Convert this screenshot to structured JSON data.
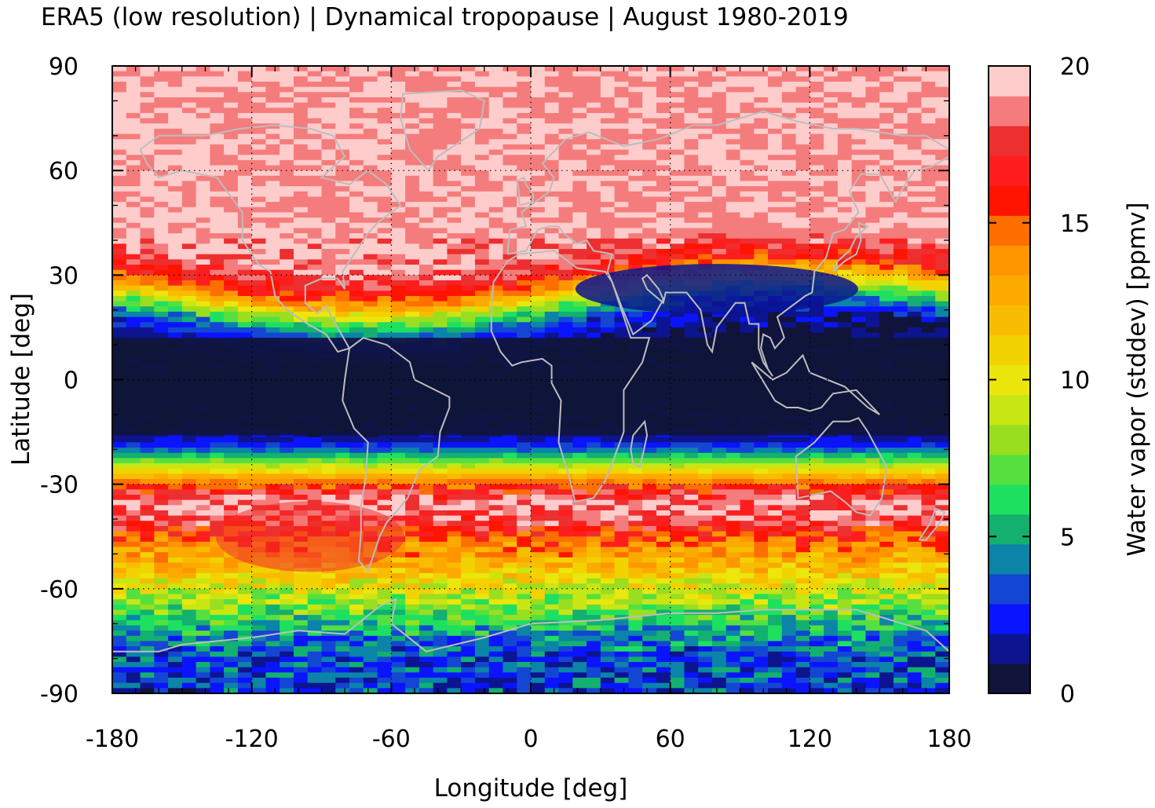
{
  "chart_data": {
    "type": "heatmap",
    "title": "ERA5 (low resolution) | Dynamical tropopause | August 1980-2019",
    "xlabel": "Longitude [deg]",
    "ylabel": "Latitude [deg]",
    "xlim": [
      -180,
      180
    ],
    "ylim": [
      -90,
      90
    ],
    "x_ticks": [
      -180,
      -120,
      -60,
      0,
      60,
      120,
      180
    ],
    "y_ticks": [
      90,
      60,
      30,
      0,
      -30,
      -60,
      -90
    ],
    "x_tick_labels": [
      "-180",
      "-120",
      "-60",
      "0",
      "60",
      "120",
      "180"
    ],
    "y_tick_labels": [
      "90",
      "60",
      "30",
      "0",
      "-30",
      "-60",
      "-90"
    ],
    "grid": true,
    "coastlines": true,
    "coastline_color": "#bdbdbd",
    "colorbar": {
      "label": "Water vapor (stddev) [ppmv]",
      "min": 0,
      "max": 20,
      "ticks": [
        0,
        5,
        10,
        15,
        20
      ],
      "tick_labels": [
        "0",
        "5",
        "10",
        "15",
        "20"
      ],
      "colors": [
        "#10143a",
        "#0c1490",
        "#0a14ff",
        "#1446d4",
        "#0b84a8",
        "#13b070",
        "#1ee060",
        "#55e040",
        "#9ade20",
        "#c8e614",
        "#ebe60c",
        "#f2d200",
        "#f8bd00",
        "#fcaa00",
        "#ff9600",
        "#ff6e00",
        "#ff1400",
        "#ff1e1e",
        "#ee2f2f",
        "#f57c7c",
        "#ffcccc"
      ]
    },
    "zonal_profile": {
      "lat": [
        90,
        60,
        40,
        35,
        30,
        26,
        22,
        18,
        14,
        10,
        0,
        -10,
        -18,
        -22,
        -26,
        -30,
        -35,
        -40,
        -45,
        -50,
        -55,
        -60,
        -65,
        -70,
        -75,
        -80,
        -90
      ],
      "values": [
        20,
        20,
        20,
        19,
        17,
        13,
        8,
        4,
        2,
        1,
        0.4,
        0.5,
        2,
        6,
        11,
        16,
        20,
        19,
        16,
        14,
        12,
        10,
        8,
        6,
        4.5,
        3.5,
        3
      ]
    }
  }
}
